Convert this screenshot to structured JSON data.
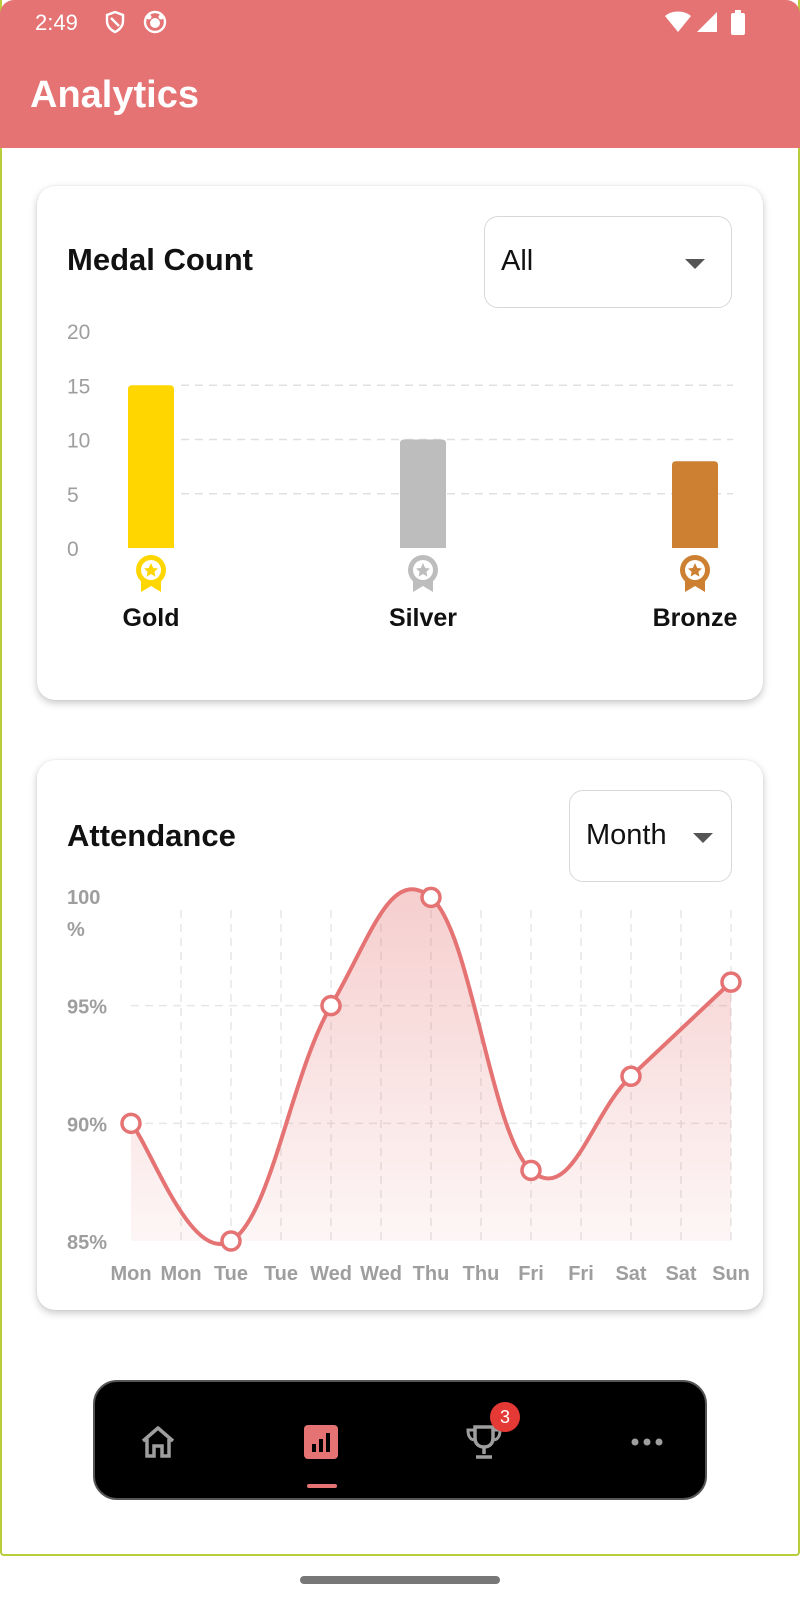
{
  "status_bar": {
    "time": "2:49"
  },
  "app_bar": {
    "title": "Analytics"
  },
  "medal_card": {
    "title": "Medal Count",
    "filter": {
      "selected": "All"
    }
  },
  "attendance_card": {
    "title": "Attendance",
    "filter": {
      "selected": "Month"
    }
  },
  "bottom_nav": {
    "items": [
      {
        "icon": "home-icon"
      },
      {
        "icon": "analytics-icon",
        "active": true
      },
      {
        "icon": "trophy-icon",
        "badge": "3"
      },
      {
        "icon": "more-icon"
      }
    ]
  },
  "colors": {
    "accent": "#e57373",
    "gold": "#ffd600",
    "silver": "#bdbdbd",
    "bronze": "#cd7f32"
  },
  "chart_data": [
    {
      "type": "bar",
      "categories": [
        "Gold",
        "Silver",
        "Bronze"
      ],
      "values": [
        15,
        10,
        8
      ],
      "ylim": [
        0,
        20
      ],
      "yticks": [
        "0",
        "5",
        "10",
        "15",
        "20"
      ],
      "grid": true
    },
    {
      "type": "area",
      "x": [
        "Mon",
        "Mon",
        "Tue",
        "Tue",
        "Wed",
        "Wed",
        "Thu",
        "Thu",
        "Fri",
        "Fri",
        "Sat",
        "Sat",
        "Sun"
      ],
      "points": [
        {
          "x": "Mon",
          "y": 90
        },
        {
          "x": "Tue",
          "y": 85
        },
        {
          "x": "Wed",
          "y": 95
        },
        {
          "x": "Thu",
          "y": 99.6
        },
        {
          "x": "Fri",
          "y": 88
        },
        {
          "x": "Sat",
          "y": 92
        },
        {
          "x": "Sun",
          "y": 96
        }
      ],
      "ylim": [
        85,
        100
      ],
      "yticks": [
        "85%",
        "90%",
        "95%",
        "100 %"
      ],
      "grid": true
    }
  ]
}
